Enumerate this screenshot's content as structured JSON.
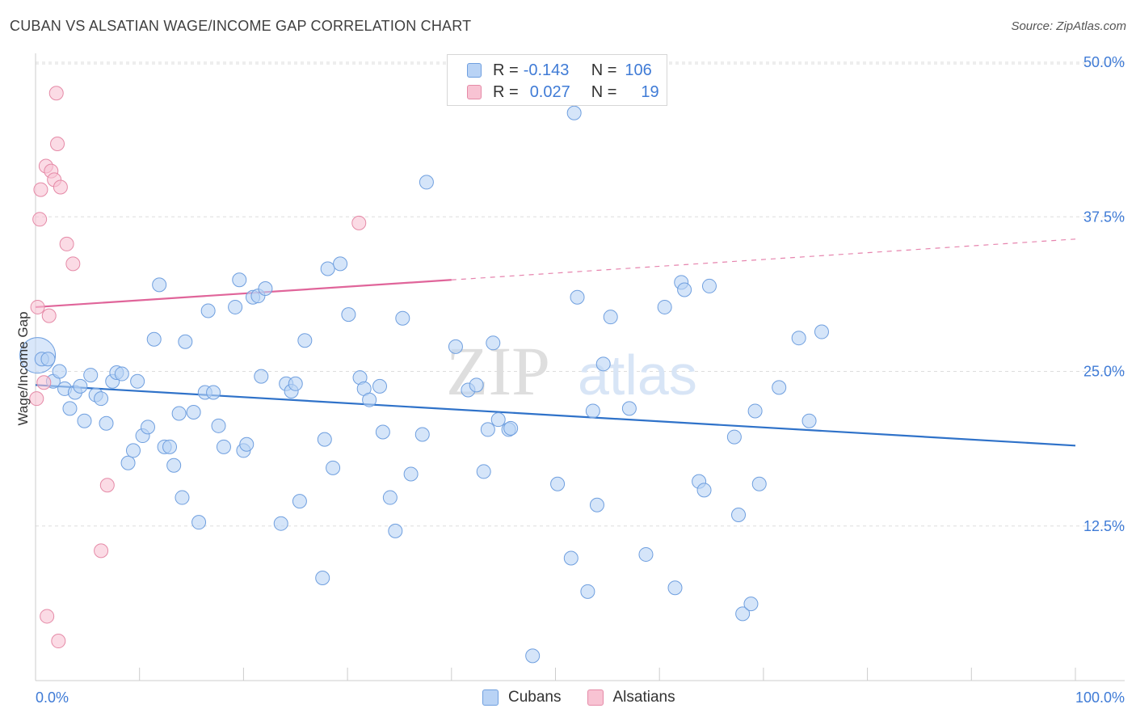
{
  "title": "CUBAN VS ALSATIAN WAGE/INCOME GAP CORRELATION CHART",
  "source": "Source: ZipAtlas.com",
  "colors": {
    "cubans_fill": "#b9d3f5",
    "cubans_stroke": "#6f9fdf",
    "cubans_line": "#2f72c9",
    "alsatians_fill": "#f8c3d3",
    "alsatians_stroke": "#e58aa7",
    "alsatians_line": "#e0659a",
    "tick_label": "#3f7bd6",
    "grid": "#dddddd"
  },
  "legend": {
    "rows": [
      {
        "r_label": "R =",
        "r_value": "-0.143",
        "n_label": "N =",
        "n_value": "106"
      },
      {
        "r_label": "R =",
        "r_value": "0.027",
        "n_label": "N =",
        "n_value": "19"
      }
    ]
  },
  "watermark": {
    "zip": "ZIP",
    "atlas": "atlas"
  },
  "chart_data": {
    "type": "scatter",
    "title": "CUBAN VS ALSATIAN WAGE/INCOME GAP CORRELATION CHART",
    "xlabel": "",
    "ylabel": "Wage/Income Gap",
    "xlim": [
      0,
      100
    ],
    "ylim": [
      0,
      52
    ],
    "x_tick_labels": [
      "0.0%",
      "100.0%"
    ],
    "y_ticks": [
      12.5,
      25.0,
      37.5,
      50.0
    ],
    "y_tick_labels": [
      "12.5%",
      "25.0%",
      "37.5%",
      "50.0%"
    ],
    "grid": true,
    "legend_position": "top-center",
    "series": [
      {
        "name": "Cubans",
        "trend": {
          "x": [
            0,
            100
          ],
          "y": [
            23.9,
            19.0
          ]
        },
        "points": [
          [
            0.2,
            26.3
          ],
          [
            0.6,
            26.0
          ],
          [
            1.2,
            26.0
          ],
          [
            1.7,
            24.2
          ],
          [
            2.3,
            25.0
          ],
          [
            2.8,
            23.6
          ],
          [
            3.3,
            22.0
          ],
          [
            3.8,
            23.3
          ],
          [
            4.3,
            23.8
          ],
          [
            4.7,
            21.0
          ],
          [
            5.3,
            24.7
          ],
          [
            5.8,
            23.1
          ],
          [
            6.3,
            22.8
          ],
          [
            6.8,
            20.8
          ],
          [
            7.4,
            24.2
          ],
          [
            7.8,
            24.9
          ],
          [
            8.3,
            24.8
          ],
          [
            8.9,
            17.6
          ],
          [
            9.4,
            18.6
          ],
          [
            9.8,
            24.2
          ],
          [
            10.3,
            19.8
          ],
          [
            10.8,
            20.5
          ],
          [
            11.4,
            27.6
          ],
          [
            11.9,
            32.0
          ],
          [
            12.4,
            18.9
          ],
          [
            12.9,
            18.9
          ],
          [
            13.3,
            17.4
          ],
          [
            13.8,
            21.6
          ],
          [
            14.1,
            14.8
          ],
          [
            14.4,
            27.4
          ],
          [
            15.2,
            21.7
          ],
          [
            15.7,
            12.8
          ],
          [
            16.3,
            23.3
          ],
          [
            16.6,
            29.9
          ],
          [
            17.1,
            23.3
          ],
          [
            17.6,
            20.6
          ],
          [
            18.1,
            18.9
          ],
          [
            19.2,
            30.2
          ],
          [
            19.6,
            32.4
          ],
          [
            20.0,
            18.6
          ],
          [
            20.3,
            19.1
          ],
          [
            20.9,
            31.0
          ],
          [
            21.4,
            31.1
          ],
          [
            21.7,
            24.6
          ],
          [
            22.1,
            31.7
          ],
          [
            23.6,
            12.7
          ],
          [
            24.1,
            24.0
          ],
          [
            24.6,
            23.4
          ],
          [
            25.0,
            24.0
          ],
          [
            25.4,
            14.5
          ],
          [
            25.9,
            27.5
          ],
          [
            27.6,
            8.3
          ],
          [
            27.8,
            19.5
          ],
          [
            28.1,
            33.3
          ],
          [
            28.6,
            17.2
          ],
          [
            29.3,
            33.7
          ],
          [
            30.1,
            29.6
          ],
          [
            31.2,
            24.5
          ],
          [
            31.6,
            23.6
          ],
          [
            32.1,
            22.7
          ],
          [
            33.1,
            23.8
          ],
          [
            33.4,
            20.1
          ],
          [
            34.1,
            14.8
          ],
          [
            34.6,
            12.1
          ],
          [
            35.3,
            29.3
          ],
          [
            36.1,
            16.7
          ],
          [
            37.2,
            19.9
          ],
          [
            37.6,
            40.3
          ],
          [
            40.4,
            27.0
          ],
          [
            41.6,
            23.5
          ],
          [
            42.4,
            23.9
          ],
          [
            43.1,
            16.9
          ],
          [
            43.5,
            20.3
          ],
          [
            44.0,
            27.3
          ],
          [
            44.5,
            21.1
          ],
          [
            45.5,
            20.3
          ],
          [
            45.7,
            20.4
          ],
          [
            47.8,
            2.0
          ],
          [
            50.2,
            15.9
          ],
          [
            51.5,
            9.9
          ],
          [
            51.8,
            45.9
          ],
          [
            52.1,
            31.0
          ],
          [
            53.1,
            7.2
          ],
          [
            53.6,
            21.8
          ],
          [
            54.0,
            14.2
          ],
          [
            54.6,
            25.6
          ],
          [
            55.3,
            29.4
          ],
          [
            57.1,
            22.0
          ],
          [
            58.7,
            10.2
          ],
          [
            60.5,
            30.2
          ],
          [
            61.5,
            7.5
          ],
          [
            62.1,
            32.2
          ],
          [
            62.4,
            31.6
          ],
          [
            63.8,
            16.1
          ],
          [
            64.3,
            15.4
          ],
          [
            64.8,
            31.9
          ],
          [
            67.2,
            19.7
          ],
          [
            67.6,
            13.4
          ],
          [
            68.0,
            5.4
          ],
          [
            68.8,
            6.2
          ],
          [
            69.2,
            21.8
          ],
          [
            69.6,
            15.9
          ],
          [
            71.5,
            23.7
          ],
          [
            73.4,
            27.7
          ],
          [
            74.4,
            21.0
          ],
          [
            75.6,
            28.2
          ]
        ]
      },
      {
        "name": "Alsatians",
        "trend": {
          "x": [
            0,
            40
          ],
          "y": [
            30.2,
            32.4
          ],
          "dashed_to": {
            "x": 100,
            "y": 35.7
          }
        },
        "points": [
          [
            0.1,
            22.8
          ],
          [
            0.2,
            30.2
          ],
          [
            0.4,
            37.3
          ],
          [
            0.5,
            39.7
          ],
          [
            0.8,
            24.1
          ],
          [
            1.0,
            41.6
          ],
          [
            1.1,
            5.2
          ],
          [
            1.3,
            29.5
          ],
          [
            1.5,
            41.2
          ],
          [
            1.8,
            40.5
          ],
          [
            2.0,
            47.5
          ],
          [
            2.1,
            43.4
          ],
          [
            2.2,
            3.2
          ],
          [
            2.4,
            39.9
          ],
          [
            3.0,
            35.3
          ],
          [
            3.6,
            33.7
          ],
          [
            6.3,
            10.5
          ],
          [
            6.9,
            15.8
          ],
          [
            31.1,
            37.0
          ]
        ]
      }
    ]
  }
}
